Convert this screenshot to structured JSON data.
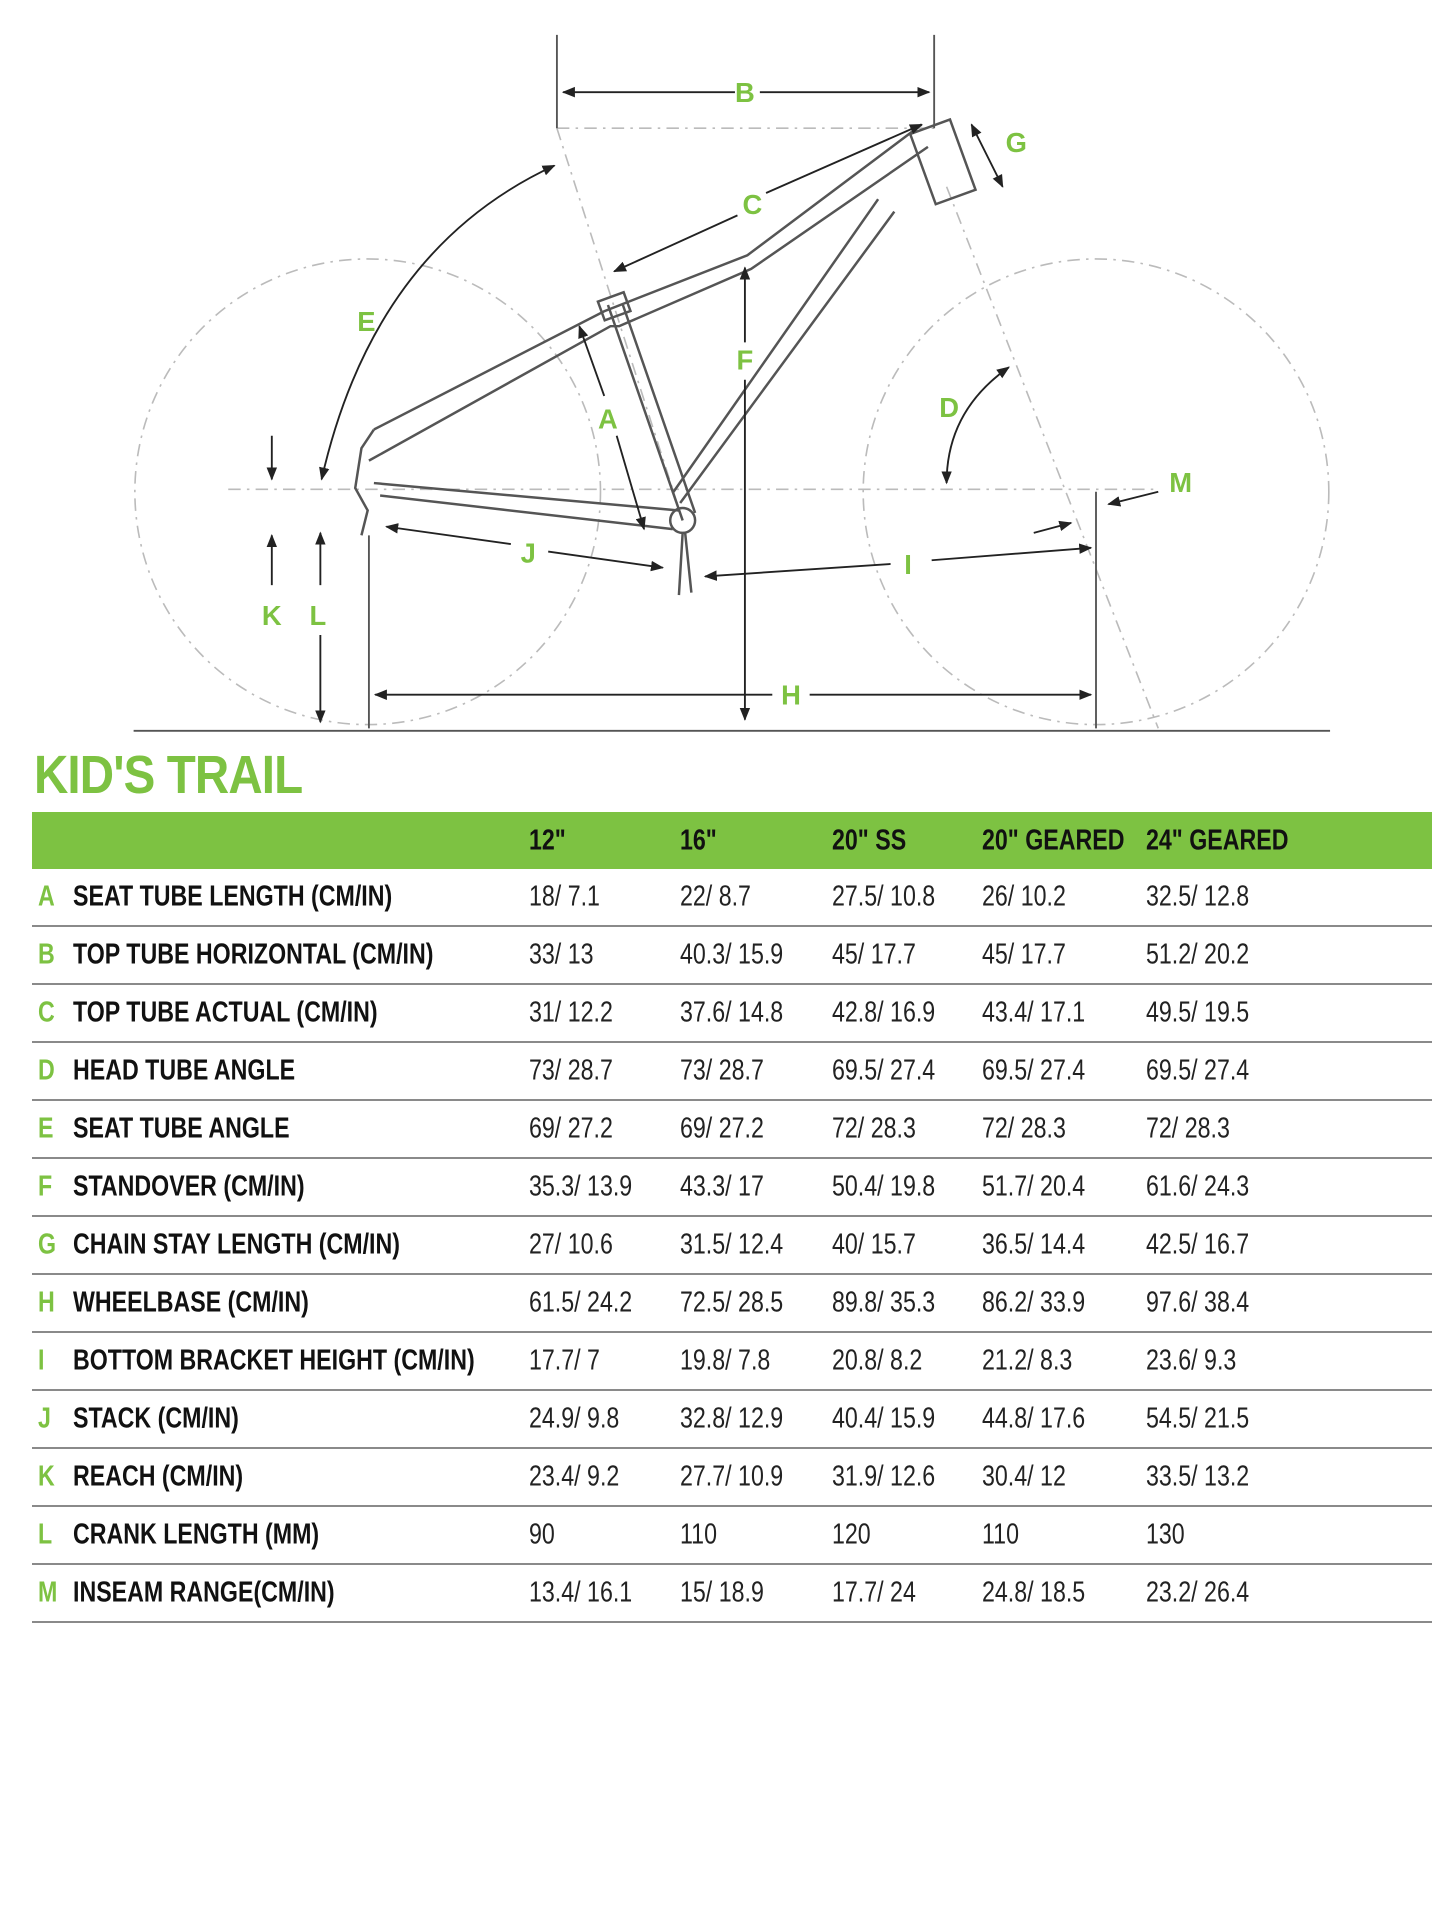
{
  "diagram": {
    "labels": {
      "A": "A",
      "B": "B",
      "C": "C",
      "D": "D",
      "E": "E",
      "F": "F",
      "G": "G",
      "H": "H",
      "I": "I",
      "J": "J",
      "K": "K",
      "L": "L",
      "M": "M"
    },
    "accent_color": "#7dc242"
  },
  "title": "KID'S TRAIL",
  "table": {
    "columns": [
      "12\"",
      "16\"",
      "20\" SS",
      "20\" GEARED",
      "24\" GEARED"
    ],
    "rows": [
      {
        "letter": "A",
        "label": "SEAT TUBE LENGTH (CM/IN)",
        "values": [
          "18/ 7.1",
          "22/ 8.7",
          "27.5/ 10.8",
          "26/ 10.2",
          "32.5/ 12.8"
        ]
      },
      {
        "letter": "B",
        "label": "TOP TUBE HORIZONTAL (CM/IN)",
        "values": [
          "33/ 13",
          "40.3/ 15.9",
          "45/ 17.7",
          "45/ 17.7",
          "51.2/ 20.2"
        ]
      },
      {
        "letter": "C",
        "label": "TOP TUBE ACTUAL (CM/IN)",
        "values": [
          "31/ 12.2",
          "37.6/ 14.8",
          "42.8/ 16.9",
          "43.4/ 17.1",
          "49.5/ 19.5"
        ]
      },
      {
        "letter": "D",
        "label": "HEAD TUBE ANGLE",
        "values": [
          "73/ 28.7",
          "73/ 28.7",
          "69.5/ 27.4",
          "69.5/ 27.4",
          "69.5/ 27.4"
        ]
      },
      {
        "letter": "E",
        "label": "SEAT TUBE ANGLE",
        "values": [
          "69/ 27.2",
          "69/ 27.2",
          "72/ 28.3",
          "72/ 28.3",
          "72/ 28.3"
        ]
      },
      {
        "letter": "F",
        "label": "STANDOVER (CM/IN)",
        "values": [
          "35.3/ 13.9",
          "43.3/ 17",
          "50.4/ 19.8",
          "51.7/ 20.4",
          "61.6/ 24.3"
        ]
      },
      {
        "letter": "G",
        "label": "CHAIN STAY LENGTH (CM/IN)",
        "values": [
          "27/ 10.6",
          "31.5/ 12.4",
          "40/ 15.7",
          "36.5/ 14.4",
          "42.5/ 16.7"
        ]
      },
      {
        "letter": "H",
        "label": "WHEELBASE (CM/IN)",
        "values": [
          "61.5/ 24.2",
          "72.5/ 28.5",
          "89.8/ 35.3",
          "86.2/ 33.9",
          "97.6/ 38.4"
        ]
      },
      {
        "letter": "I",
        "label": "BOTTOM BRACKET HEIGHT (CM/IN)",
        "values": [
          "17.7/ 7",
          "19.8/ 7.8",
          "20.8/ 8.2",
          "21.2/ 8.3",
          "23.6/ 9.3"
        ]
      },
      {
        "letter": "J",
        "label": "STACK (CM/IN)",
        "values": [
          "24.9/ 9.8",
          "32.8/ 12.9",
          "40.4/ 15.9",
          "44.8/ 17.6",
          "54.5/ 21.5"
        ]
      },
      {
        "letter": "K",
        "label": "REACH (CM/IN)",
        "values": [
          "23.4/ 9.2",
          "27.7/ 10.9",
          "31.9/ 12.6",
          "30.4/ 12",
          "33.5/ 13.2"
        ]
      },
      {
        "letter": "L",
        "label": "CRANK LENGTH (MM)",
        "values": [
          "90",
          "110",
          "120",
          "110",
          "130"
        ]
      },
      {
        "letter": "M",
        "label": "INSEAM RANGE(CM/IN)",
        "values": [
          "13.4/ 16.1",
          "15/ 18.9",
          "17.7/ 24",
          "24.8/ 18.5",
          "23.2/ 26.4"
        ]
      }
    ]
  }
}
